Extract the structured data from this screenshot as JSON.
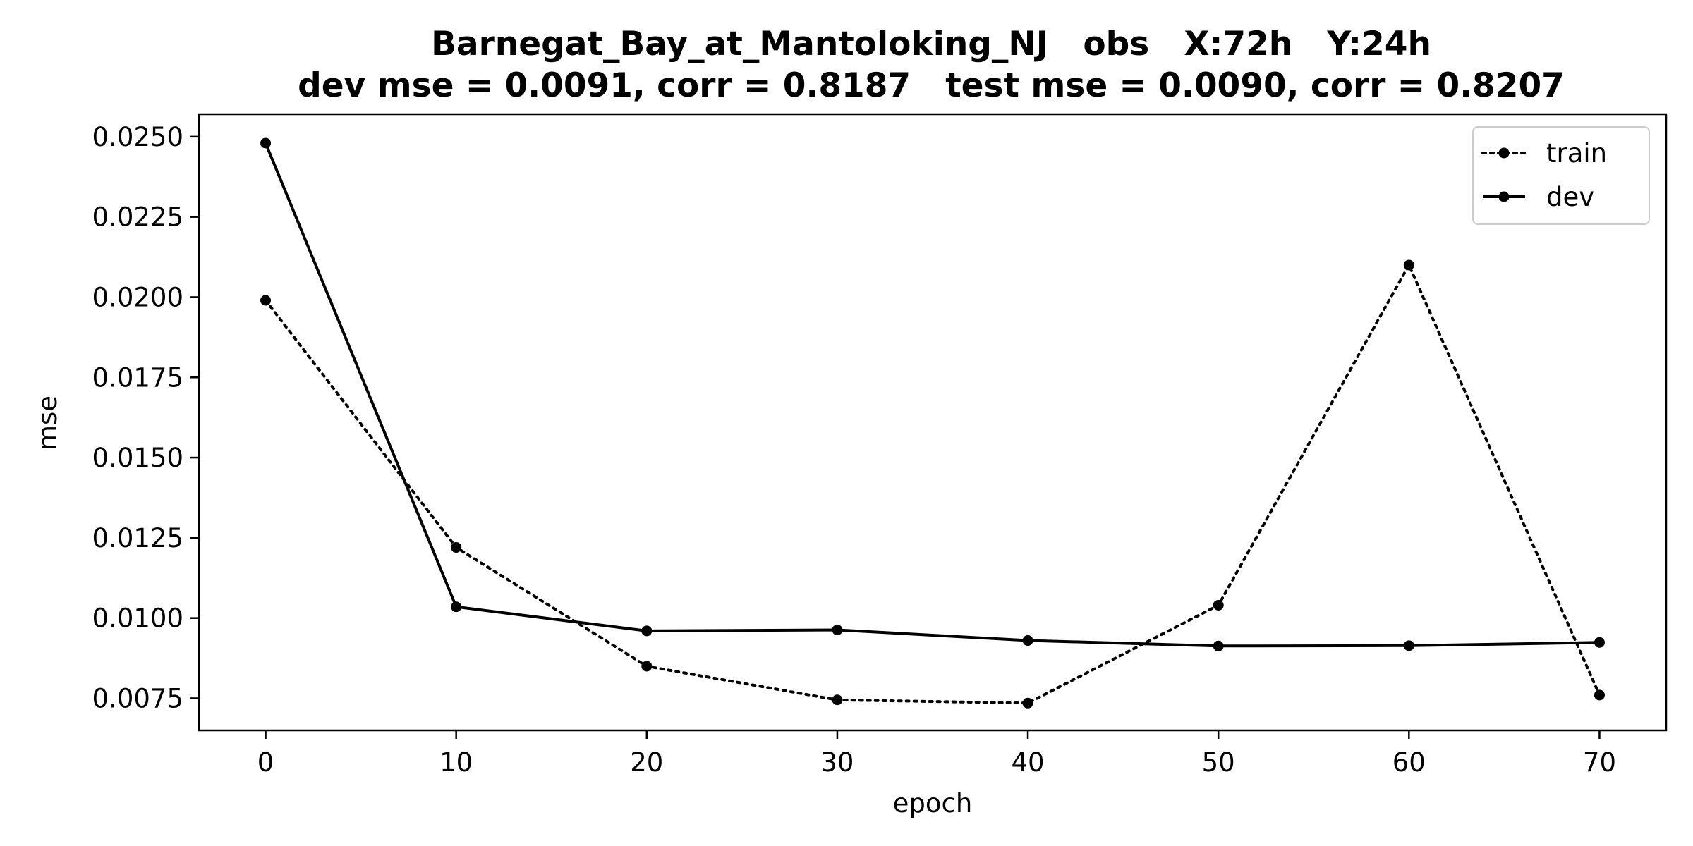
{
  "chart_data": {
    "type": "line",
    "title_line1": "Barnegat_Bay_at_Mantoloking_NJ   obs   X:72h   Y:24h",
    "title_line2": "dev mse = 0.0091, corr = 0.8187   test mse = 0.0090, corr = 0.8207",
    "xlabel": "epoch",
    "ylabel": "mse",
    "xlim": [
      -3.5,
      73.5
    ],
    "ylim": [
      0.0065,
      0.0257
    ],
    "xticks": [
      0,
      10,
      20,
      30,
      40,
      50,
      60,
      70
    ],
    "xtick_labels": [
      "0",
      "10",
      "20",
      "30",
      "40",
      "50",
      "60",
      "70"
    ],
    "yticks": [
      0.0075,
      0.01,
      0.0125,
      0.015,
      0.0175,
      0.02,
      0.0225,
      0.025
    ],
    "ytick_labels": [
      "0.0075",
      "0.0100",
      "0.0125",
      "0.0150",
      "0.0175",
      "0.0200",
      "0.0225",
      "0.0250"
    ],
    "grid": false,
    "legend_position": "top-right",
    "x": [
      0,
      10,
      20,
      30,
      40,
      50,
      60,
      70
    ],
    "series": [
      {
        "name": "train",
        "style": "dotted",
        "color": "#000000",
        "values": [
          0.0199,
          0.0122,
          0.0085,
          0.00745,
          0.00735,
          0.0104,
          0.021,
          0.0076
        ]
      },
      {
        "name": "dev",
        "style": "solid",
        "color": "#000000",
        "values": [
          0.0248,
          0.01035,
          0.0096,
          0.00963,
          0.0093,
          0.00913,
          0.00914,
          0.00924
        ]
      }
    ]
  }
}
